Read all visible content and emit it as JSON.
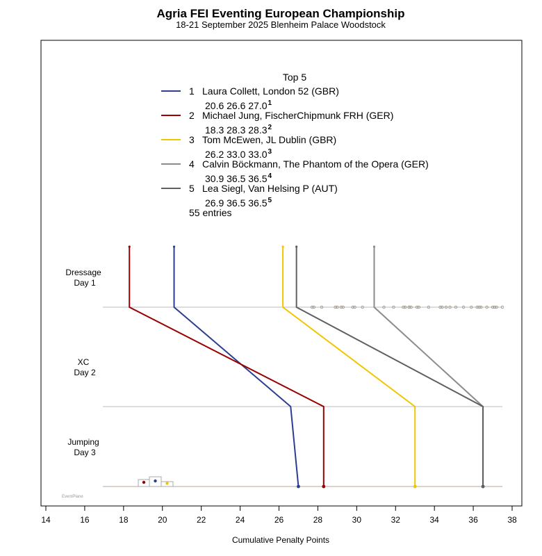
{
  "chart_data": {
    "type": "line",
    "title": "Agria FEI Eventing European Championship",
    "subtitle": "18-21 September 2025 Blenheim Palace  Woodstock",
    "xlabel": "Cumulative Penalty Points",
    "xlim": [
      14,
      38
    ],
    "xticks": [
      "14",
      "16",
      "18",
      "20",
      "22",
      "24",
      "26",
      "28",
      "30",
      "32",
      "34",
      "36",
      "38"
    ],
    "phases": [
      {
        "name": "Dressage",
        "day": "Day 1"
      },
      {
        "name": "XC",
        "day": "Day 2"
      },
      {
        "name": "Jumping",
        "day": "Day 3"
      }
    ],
    "legend_title": "Top 5",
    "entries_text": "55 entries",
    "series": [
      {
        "rank": "1",
        "name": "Laura Collett,  London 52  (GBR)",
        "values": [
          20.6,
          26.6,
          27.0
        ],
        "scores_text": "20.6  26.6  27.0",
        "color": "#2b3e92"
      },
      {
        "rank": "2",
        "name": "Michael Jung,  FischerChipmunk FRH  (GER)",
        "values": [
          18.3,
          28.3,
          28.3
        ],
        "scores_text": "18.3  28.3  28.3",
        "color": "#990000"
      },
      {
        "rank": "3",
        "name": "Tom McEwen,  JL Dublin  (GBR)",
        "values": [
          26.2,
          33.0,
          33.0
        ],
        "scores_text": "26.2  33.0  33.0",
        "color": "#f2c500"
      },
      {
        "rank": "4",
        "name": "Calvin Böckmann,  The Phantom of the Opera  (GER)",
        "values": [
          30.9,
          36.5,
          36.5
        ],
        "scores_text": "30.9  36.5  36.5",
        "color": "#8c8c8c"
      },
      {
        "rank": "5",
        "name": "Lea Siegl,  Van Helsing P  (AUT)",
        "values": [
          26.9,
          36.5,
          36.5
        ],
        "scores_text": "26.9  36.5  36.5",
        "color": "#5f5f5f"
      }
    ],
    "other_dressage_scores": [
      27.7,
      27.8,
      28.2,
      28.9,
      29.0,
      29.2,
      29.3,
      29.8,
      29.9,
      30.3,
      31.4,
      31.9,
      32.4,
      32.5,
      32.7,
      32.7,
      32.8,
      33.1,
      33.2,
      33.7,
      34.3,
      34.4,
      34.6,
      34.8,
      35.1,
      35.5,
      35.9,
      36.2,
      36.3,
      36.4,
      36.7,
      37.0,
      37.1,
      37.2,
      37.5
    ],
    "watermark": "EventPlane",
    "grid": false,
    "legend_position": "top"
  }
}
